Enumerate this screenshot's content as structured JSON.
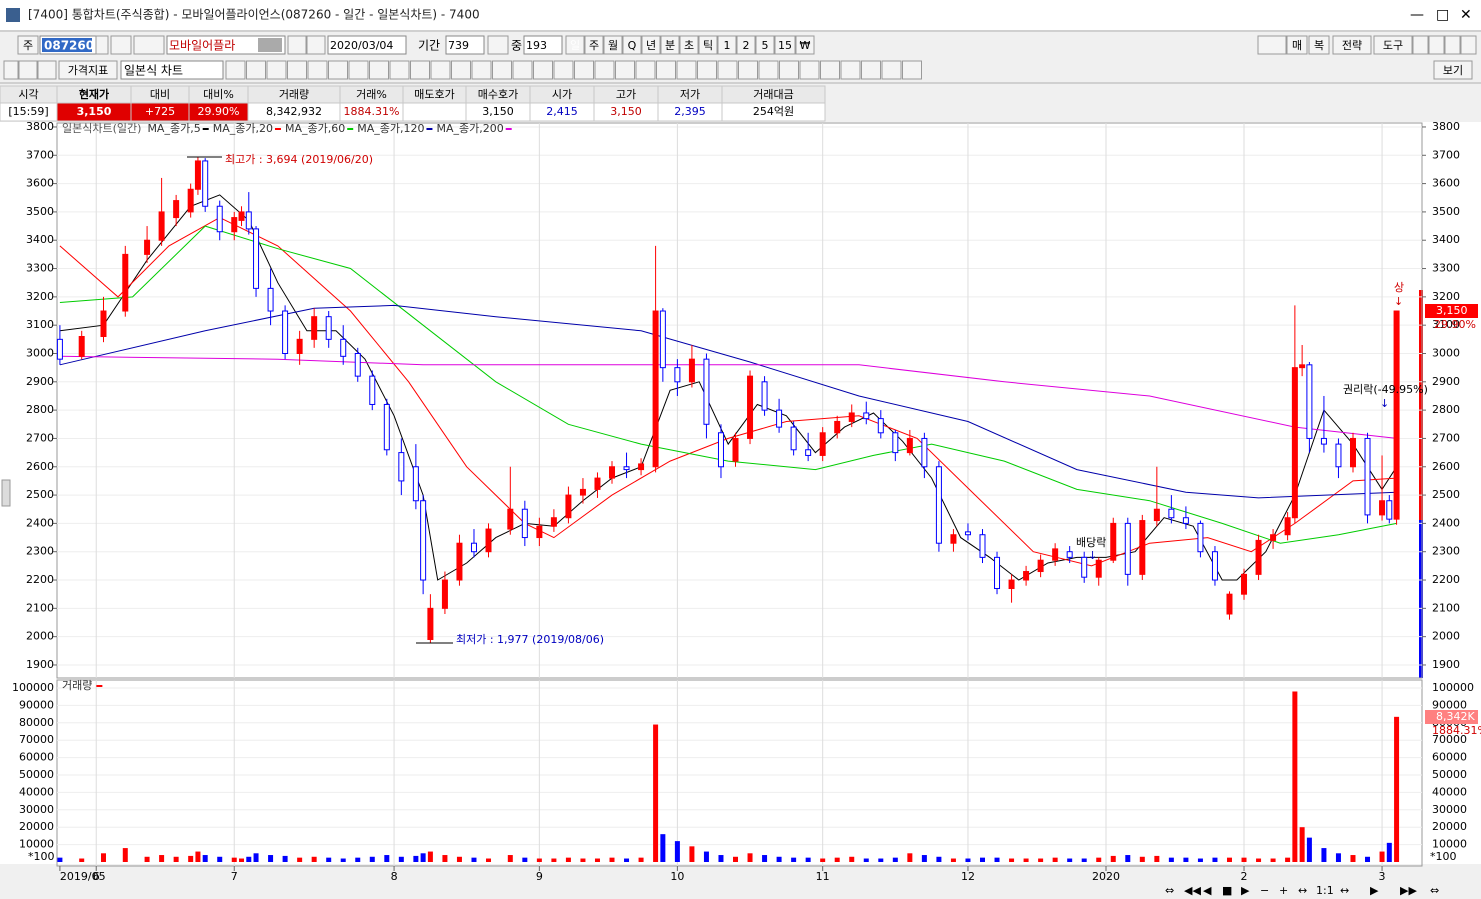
{
  "window": {
    "title": "[7400] 통합차트(주식종합) - 모바일어플라이언스(087260 - 일간 - 일본식차트) - 7400"
  },
  "toolbar": {
    "market": "주",
    "code": "087260",
    "name": "모바일어플라",
    "date": "2020/03/04",
    "period_label": "기간",
    "period": "739",
    "mid_label": "중",
    "mid": "193",
    "intervals": [
      "일",
      "주",
      "월",
      "Q",
      "년",
      "분",
      "초",
      "틱",
      "1",
      "2",
      "5",
      "15",
      "₩"
    ],
    "right_buttons": [
      "매",
      "복",
      "전략",
      "도구"
    ],
    "indicator": "가격지표",
    "chart_kind": "일본식 차트",
    "view": "보기"
  },
  "quote": {
    "headers": [
      "시각",
      "현재가",
      "대비",
      "대비%",
      "거래량",
      "거래%",
      "매도호가",
      "매수호가",
      "시가",
      "고가",
      "저가",
      "거래대금"
    ],
    "row": [
      "[15:59]",
      "3,150",
      "+725",
      "29.90%",
      "8,342,932",
      "1884.31%",
      null,
      "3,150",
      "2,415",
      "3,150",
      "2,395",
      "254억원"
    ]
  },
  "price_chart": {
    "type": "candlestick",
    "legend_title": "일본식차트(일간)",
    "x": [
      0,
      3,
      6,
      9,
      12,
      14,
      16,
      18,
      19,
      20,
      22,
      24,
      25,
      26,
      27,
      29,
      31,
      33,
      35,
      37,
      39,
      41,
      43,
      45,
      47,
      49,
      50,
      51,
      53,
      55,
      57,
      59,
      62,
      64,
      66,
      68,
      70,
      72,
      74,
      76,
      78,
      80,
      82,
      83,
      85,
      87,
      89,
      91,
      93,
      95,
      97,
      99,
      101,
      103,
      105,
      107,
      109,
      111,
      113,
      115,
      117,
      119,
      121,
      123,
      125,
      127,
      129,
      131,
      133,
      135,
      137,
      139,
      141,
      143,
      145,
      147,
      149,
      151,
      153,
      155,
      157,
      159,
      161,
      163,
      165,
      167,
      169,
      170,
      171,
      172,
      174,
      176,
      178,
      180,
      182,
      183,
      184
    ],
    "open": [
      3050,
      2990,
      3060,
      3150,
      3350,
      3400,
      3480,
      3500,
      3580,
      3680,
      3520,
      3430,
      3470,
      3500,
      3440,
      3230,
      3150,
      3000,
      3050,
      3130,
      3050,
      3000,
      2920,
      2820,
      2650,
      2600,
      2480,
      1990,
      2100,
      2200,
      2330,
      2300,
      2380,
      2450,
      2350,
      2390,
      2420,
      2500,
      2520,
      2560,
      2600,
      2590,
      2600,
      3150,
      2950,
      2900,
      2980,
      2720,
      2620,
      2700,
      2900,
      2800,
      2740,
      2660,
      2640,
      2720,
      2760,
      2790,
      2770,
      2720,
      2650,
      2700,
      2600,
      2330,
      2370,
      2360,
      2280,
      2170,
      2200,
      2230,
      2270,
      2300,
      2280,
      2210,
      2270,
      2400,
      2220,
      2410,
      2450,
      2420,
      2400,
      2300,
      2080,
      2150,
      2220,
      2340,
      2360,
      2420,
      2950,
      2960,
      2700,
      2680,
      2600,
      2700,
      2430,
      2480,
      2415
    ],
    "high": [
      3100,
      3080,
      3200,
      3380,
      3450,
      3620,
      3560,
      3600,
      3694,
      3690,
      3540,
      3500,
      3520,
      3570,
      3450,
      3300,
      3170,
      3080,
      3160,
      3150,
      3100,
      3020,
      2940,
      2840,
      2700,
      2680,
      2500,
      2150,
      2230,
      2360,
      2380,
      2400,
      2600,
      2480,
      2420,
      2450,
      2530,
      2560,
      2580,
      2620,
      2650,
      2630,
      3380,
      3160,
      2980,
      3030,
      3000,
      2750,
      2720,
      2940,
      2920,
      2840,
      2760,
      2720,
      2740,
      2780,
      2820,
      2830,
      2800,
      2730,
      2730,
      2720,
      2620,
      2380,
      2400,
      2380,
      2300,
      2220,
      2250,
      2290,
      2330,
      2320,
      2300,
      2280,
      2420,
      2420,
      2430,
      2600,
      2500,
      2460,
      2410,
      2320,
      2160,
      2240,
      2360,
      2380,
      2440,
      3170,
      3030,
      2970,
      2850,
      2700,
      2720,
      2720,
      2640,
      2500,
      3150
    ],
    "low": [
      2960,
      2980,
      3040,
      3130,
      3320,
      3380,
      3450,
      3480,
      3560,
      3500,
      3400,
      3400,
      3450,
      3420,
      3200,
      3100,
      2980,
      2960,
      3020,
      3020,
      2960,
      2900,
      2800,
      2640,
      2500,
      2450,
      2150,
      1977,
      2080,
      2180,
      2280,
      2280,
      2360,
      2320,
      2320,
      2370,
      2400,
      2470,
      2490,
      2540,
      2560,
      2570,
      2580,
      2900,
      2850,
      2880,
      2700,
      2560,
      2600,
      2680,
      2780,
      2720,
      2640,
      2620,
      2620,
      2700,
      2740,
      2750,
      2700,
      2620,
      2640,
      2560,
      2300,
      2300,
      2340,
      2260,
      2150,
      2120,
      2180,
      2210,
      2250,
      2260,
      2190,
      2180,
      2260,
      2180,
      2200,
      2390,
      2400,
      2380,
      2280,
      2180,
      2060,
      2130,
      2200,
      2310,
      2340,
      2400,
      2920,
      2650,
      2650,
      2560,
      2580,
      2400,
      2410,
      2400,
      2395
    ],
    "close": [
      2980,
      3060,
      3150,
      3350,
      3400,
      3500,
      3540,
      3580,
      3680,
      3520,
      3430,
      3480,
      3500,
      3440,
      3230,
      3150,
      3000,
      3050,
      3130,
      3050,
      2990,
      2920,
      2820,
      2660,
      2550,
      2480,
      2200,
      2100,
      2200,
      2330,
      2300,
      2380,
      2450,
      2350,
      2390,
      2420,
      2500,
      2520,
      2560,
      2600,
      2590,
      2610,
      3150,
      2950,
      2900,
      2980,
      2750,
      2600,
      2700,
      2920,
      2800,
      2740,
      2660,
      2640,
      2720,
      2760,
      2790,
      2770,
      2720,
      2650,
      2700,
      2600,
      2330,
      2360,
      2360,
      2280,
      2170,
      2200,
      2230,
      2270,
      2310,
      2280,
      2210,
      2270,
      2400,
      2220,
      2410,
      2450,
      2420,
      2400,
      2300,
      2200,
      2150,
      2220,
      2340,
      2360,
      2420,
      2950,
      2960,
      2700,
      2680,
      2600,
      2700,
      2430,
      2480,
      2415,
      3150
    ],
    "up_color": "#ff0000",
    "down_color": "#0000ff",
    "moving_averages": [
      {
        "name": "MA_종가,5",
        "color": "#000000",
        "x": [
          0,
          6,
          12,
          18,
          22,
          26,
          30,
          34,
          38,
          42,
          46,
          50,
          52,
          56,
          60,
          64,
          68,
          72,
          76,
          80,
          84,
          88,
          92,
          96,
          100,
          104,
          108,
          112,
          116,
          120,
          124,
          128,
          132,
          136,
          140,
          144,
          148,
          152,
          156,
          160,
          162,
          166,
          170,
          174,
          178,
          182,
          184
        ],
        "values": [
          3080,
          3100,
          3330,
          3520,
          3560,
          3470,
          3250,
          3080,
          3080,
          2980,
          2780,
          2500,
          2200,
          2260,
          2350,
          2400,
          2390,
          2480,
          2560,
          2600,
          2870,
          2900,
          2680,
          2820,
          2780,
          2650,
          2740,
          2790,
          2690,
          2560,
          2350,
          2280,
          2200,
          2260,
          2280,
          2280,
          2300,
          2420,
          2390,
          2200,
          2200,
          2300,
          2500,
          2800,
          2680,
          2520,
          2600
        ]
      },
      {
        "name": "MA_종가,20",
        "color": "#ff0000",
        "x": [
          0,
          8,
          15,
          22,
          30,
          40,
          48,
          56,
          64,
          68,
          76,
          84,
          92,
          100,
          110,
          118,
          126,
          134,
          142,
          150,
          158,
          164,
          170,
          178,
          184
        ],
        "values": [
          3380,
          3200,
          3380,
          3480,
          3380,
          3150,
          2900,
          2600,
          2400,
          2350,
          2500,
          2620,
          2700,
          2760,
          2780,
          2700,
          2500,
          2300,
          2250,
          2330,
          2350,
          2300,
          2400,
          2550,
          2560
        ]
      },
      {
        "name": "MA_종가,60",
        "color": "#00cc00",
        "x": [
          0,
          10,
          20,
          30,
          40,
          50,
          60,
          70,
          80,
          92,
          104,
          112,
          120,
          130,
          140,
          150,
          160,
          168,
          176,
          184
        ],
        "values": [
          3180,
          3200,
          3450,
          3370,
          3300,
          3100,
          2900,
          2750,
          2680,
          2620,
          2590,
          2640,
          2680,
          2620,
          2520,
          2480,
          2400,
          2330,
          2360,
          2400
        ]
      },
      {
        "name": "MA_종가,120",
        "color": "#0000aa",
        "x": [
          0,
          20,
          35,
          46,
          60,
          80,
          95,
          110,
          125,
          140,
          155,
          165,
          184
        ],
        "values": [
          2960,
          3080,
          3160,
          3170,
          3130,
          3080,
          2970,
          2850,
          2760,
          2590,
          2510,
          2490,
          2510
        ]
      },
      {
        "name": "MA_종가,200",
        "color": "#dd00dd",
        "x": [
          0,
          30,
          50,
          80,
          110,
          130,
          150,
          170,
          184
        ],
        "values": [
          2990,
          2980,
          2960,
          2960,
          2960,
          2900,
          2850,
          2740,
          2700
        ]
      }
    ],
    "ylim": [
      1854,
      3814
    ],
    "yticks": [
      1900,
      2000,
      2100,
      2200,
      2300,
      2400,
      2500,
      2600,
      2700,
      2800,
      2900,
      3000,
      3100,
      3200,
      3300,
      3400,
      3500,
      3600,
      3700,
      3800
    ],
    "xlim": [
      -0.4,
      187.5
    ],
    "xticks": [
      {
        "value": 0,
        "label": "2019/05"
      },
      {
        "value": 5,
        "label": "6"
      },
      {
        "value": 24,
        "label": "7"
      },
      {
        "value": 46,
        "label": "8"
      },
      {
        "value": 66,
        "label": "9"
      },
      {
        "value": 85,
        "label": "10"
      },
      {
        "value": 105,
        "label": "11"
      },
      {
        "value": 125,
        "label": "12"
      },
      {
        "value": 144,
        "label": "2020"
      },
      {
        "value": 163,
        "label": "2"
      },
      {
        "value": 182,
        "label": "3"
      }
    ],
    "annotations": {
      "high": "최고가 : 3,694 (2019/06/20)",
      "low": "최저가 : 1,977 (2019/08/06)",
      "dividend": "배당락",
      "rights": "권리락(-49.95%)",
      "limit_up": "상"
    },
    "last_price": "3,150",
    "last_change": "29.90%"
  },
  "volume_chart": {
    "type": "bar",
    "legend": "거래량",
    "unit": "*100",
    "color": "#ff0000",
    "values": [
      2500,
      2000,
      5000,
      8000,
      3000,
      4000,
      3000,
      3500,
      6000,
      4000,
      3000,
      2500,
      2000,
      3000,
      5000,
      4000,
      3500,
      2500,
      3000,
      2500,
      2000,
      2500,
      3000,
      4000,
      3000,
      3500,
      5000,
      6000,
      4000,
      3000,
      2500,
      2000,
      4000,
      2500,
      2000,
      2000,
      2500,
      2000,
      2000,
      2500,
      2000,
      2500,
      79000,
      16000,
      12000,
      9000,
      6000,
      4000,
      3000,
      5000,
      4000,
      3000,
      2500,
      2500,
      2000,
      2500,
      3000,
      2000,
      2000,
      2500,
      5000,
      4000,
      3000,
      2000,
      2000,
      2500,
      2500,
      2000,
      2000,
      2000,
      2500,
      2000,
      2000,
      2500,
      3500,
      4000,
      3000,
      3500,
      2500,
      2500,
      2000,
      2500,
      2500,
      2500,
      2000,
      2000,
      2500,
      98000,
      20000,
      14000,
      8000,
      5000,
      4000,
      3000,
      6000,
      11000,
      83429
    ],
    "ylim": [
      -2300,
      104600
    ],
    "yticks": [
      10000,
      20000,
      30000,
      40000,
      50000,
      60000,
      70000,
      80000,
      90000,
      100000
    ],
    "last_volume": "8,342K",
    "last_ratio": "1884.31%"
  },
  "scroll": {
    "zoom": "1:1"
  }
}
